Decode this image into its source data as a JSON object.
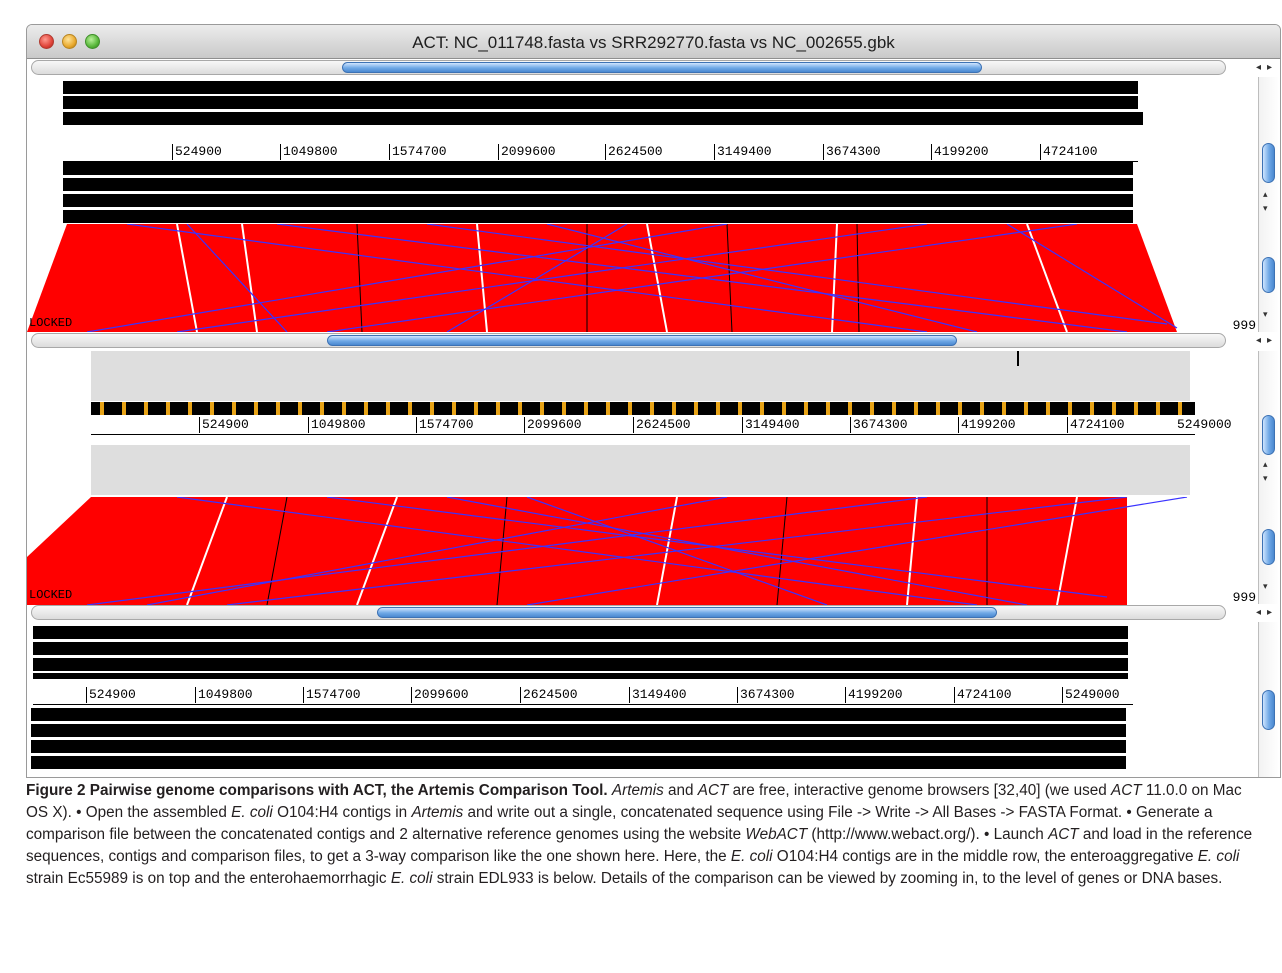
{
  "window": {
    "title": "ACT: NC_011748.fasta vs SRR292770.fasta vs NC_002655.gbk"
  },
  "labels": {
    "locked": "LOCKED",
    "count": "999",
    "end_position": "5249000"
  },
  "axis_ticks": {
    "top": [
      "524900",
      "1049800",
      "1574700",
      "2099600",
      "2624500",
      "3149400",
      "3674300",
      "4199200",
      "4724100"
    ],
    "middle": [
      "524900",
      "1049800",
      "1574700",
      "2099600",
      "2624500",
      "3149400",
      "3674300",
      "4199200",
      "4724100"
    ],
    "bottom": [
      "524900",
      "1049800",
      "1574700",
      "2099600",
      "2624500",
      "3149400",
      "3674300",
      "4199200",
      "4724100",
      "5249000"
    ]
  },
  "colors": {
    "match": "#ff0000",
    "inverted_match": "#3a33ff",
    "feature": "#000000",
    "contig": "#e8a417",
    "thumb": "#6fa8e6"
  },
  "scroll_arrows": {
    "left": "◂",
    "right": "▸",
    "up": "▴",
    "down": "▾"
  },
  "caption": {
    "figure": "Figure 2",
    "heading": "Pairwise genome comparisons with ACT, the Artemis Comparison Tool.",
    "s1_a": "Artemis",
    "s1_b": " and ",
    "s1_c": "ACT",
    "s1_d": " are free, interactive genome browsers [32,40] (we used ",
    "s1_e": "ACT",
    "s1_f": " 11.0.0 on Mac OS X). • Open the assembled ",
    "s1_g": "E. coli",
    "s1_h": " O104:H4 contigs in ",
    "s1_i": "Artemis",
    "s1_j": " and write out a single, concatenated sequence using File -> Write -> All Bases -> FASTA Format. • Generate a comparison file between the concatenated contigs and 2 alternative reference genomes using the website ",
    "s1_k": "WebACT",
    "s1_l": " (http://www.webact.org/). • Launch ",
    "s1_m": "ACT",
    "s1_n": " and load in the reference sequences, contigs and comparison files, to get a 3-way comparison like the one shown here. Here, the ",
    "s1_o": "E. coli",
    "s1_p": " O104:H4 contigs are in the middle row, the enteroaggregative ",
    "s1_q": "E. coli",
    "s1_r": " strain Ec55989 is on top and the enterohaemorrhagic ",
    "s1_s": "E. coli",
    "s1_t": " strain EDL933 is below. Details of the comparison can be viewed by zooming in, to the level of genes or DNA bases."
  }
}
